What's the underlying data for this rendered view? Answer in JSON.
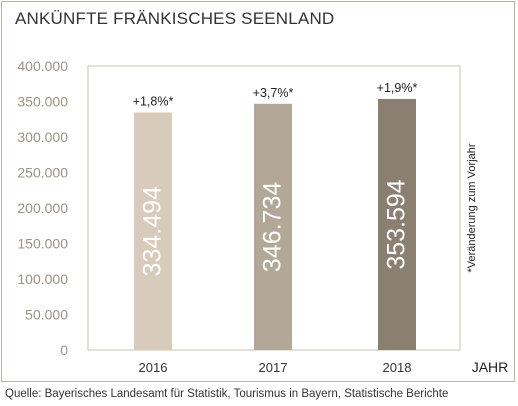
{
  "chart_data": {
    "type": "bar",
    "title": "ANKÜNFTE FRÄNKISCHES SEENLAND",
    "xlabel": "JAHR",
    "ylabel": "",
    "categories": [
      "2016",
      "2017",
      "2018"
    ],
    "values": [
      334494,
      346734,
      353594
    ],
    "value_labels": [
      "334.494",
      "346.734",
      "353.594"
    ],
    "change_labels": [
      "+1,8%*",
      "+3,7%*",
      "+1,9%*"
    ],
    "bar_colors": [
      "#d9cbbc",
      "#b3a898",
      "#8a7f70"
    ],
    "ylim": [
      0,
      400000
    ],
    "yticks": [
      "0",
      "50.000",
      "100.000",
      "150.000",
      "200.000",
      "250.000",
      "300.000",
      "350.000",
      "400.000"
    ],
    "footnote": "*Veränderung zum Vorjahr",
    "source": "Quelle: Bayerisches Landesamt für Statistik, Tourismus in Bayern, Statistische Berichte",
    "grid": false,
    "legend": "none"
  }
}
